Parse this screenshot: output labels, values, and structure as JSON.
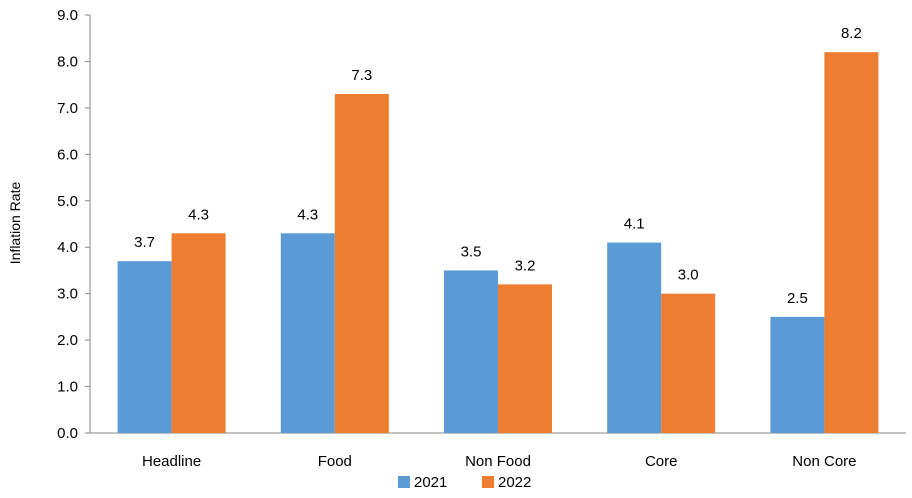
{
  "chart_data": {
    "type": "bar",
    "title": "",
    "xlabel": "",
    "ylabel": "Inflation Rate",
    "categories": [
      "Headline",
      "Food",
      "Non Food",
      "Core",
      "Non Core"
    ],
    "series": [
      {
        "name": "2021",
        "color": "#5b9bd5",
        "values": [
          3.7,
          4.3,
          3.5,
          4.1,
          2.5
        ]
      },
      {
        "name": "2022",
        "color": "#ed7d31",
        "values": [
          4.3,
          7.3,
          3.2,
          3.0,
          8.2
        ]
      }
    ],
    "ylim": [
      0,
      9
    ],
    "yticks": [
      "0.0",
      "1.0",
      "2.0",
      "3.0",
      "4.0",
      "5.0",
      "6.0",
      "7.0",
      "8.0",
      "9.0"
    ],
    "data_labels": true,
    "grid": false,
    "legend": "bottom-center"
  }
}
